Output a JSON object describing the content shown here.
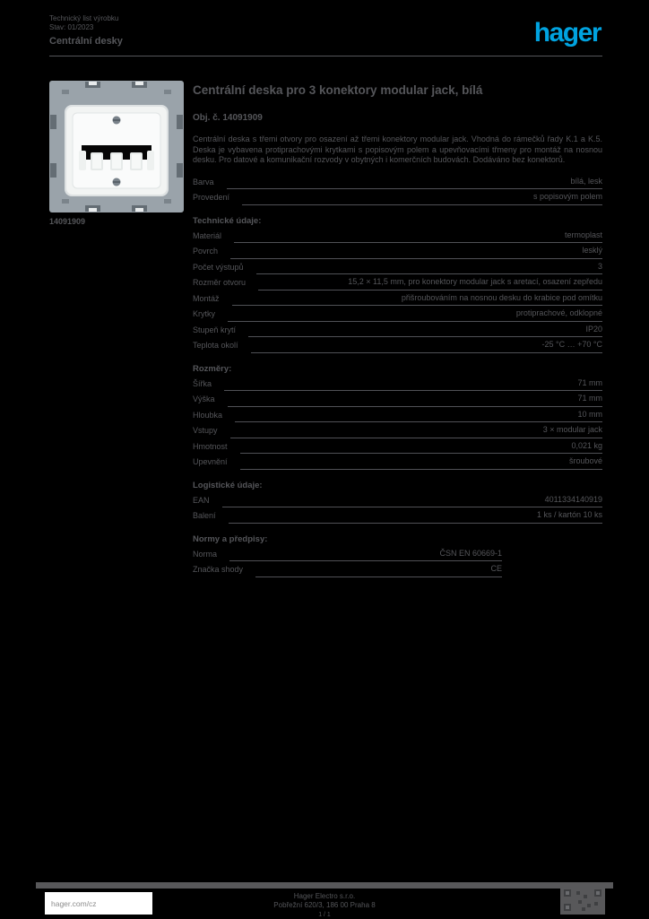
{
  "colors": {
    "background": "#000000",
    "text": "#55565a",
    "rule": "#505156",
    "logo_blue": "#00a3e0",
    "footer_box": "#ffffff",
    "footer_link_text": "#8d8d8d"
  },
  "header": {
    "line1": "Technický list výrobku",
    "line2": "Stav: 01/2023",
    "line3": "Centrální desky",
    "logo_text": "hager"
  },
  "product": {
    "image_alt": "central-plate-3-modular-jack",
    "code": "14091909"
  },
  "main": {
    "title": "Centrální deska pro 3 konektory modular jack, bílá",
    "subtitle": "Obj. č. 14091909",
    "description": "Centrální deska s třemi otvory pro osazení až třemi konektory modular jack. Vhodná do rámečků řady K.1 a K.5. Deska je vybavena protiprachovými krytkami s popisovým polem a upevňovacími třmeny pro montáž na nosnou desku. Pro datové a komunikační rozvody v obytných i komerčních budovách. Dodáváno bez konektorů.",
    "sections": [
      {
        "heading": "",
        "narrow": false,
        "rows": [
          {
            "label": "Barva",
            "value": "bílá, lesk"
          },
          {
            "label": "Provedení",
            "value": "s popisovým polem"
          }
        ]
      },
      {
        "heading": "Technické údaje:",
        "narrow": false,
        "rows": [
          {
            "label": "Materiál",
            "value": "termoplast"
          },
          {
            "label": "Povrch",
            "value": "lesklý"
          },
          {
            "label": "Počet výstupů",
            "value": "3"
          },
          {
            "label": "Rozměr otvoru",
            "value": "15,2 × 11,5 mm, pro konektory modular jack s aretací, osazení zepředu"
          },
          {
            "label": "Montáž",
            "value": "přišroubováním na nosnou desku do krabice pod omítku"
          },
          {
            "label": "Krytky",
            "value": "protiprachové, odklopné"
          },
          {
            "label": "Stupeň krytí",
            "value": "IP20"
          },
          {
            "label": "Teplota okolí",
            "value": "-25 °C … +70 °C"
          }
        ]
      },
      {
        "heading": "Rozměry:",
        "narrow": false,
        "rows": [
          {
            "label": "Šířka",
            "value": "71 mm"
          },
          {
            "label": "Výška",
            "value": "71 mm"
          },
          {
            "label": "Hloubka",
            "value": "10 mm"
          },
          {
            "label": "Vstupy",
            "value": "3 × modular jack"
          },
          {
            "label": "Hmotnost",
            "value": "0,021 kg"
          },
          {
            "label": "Upevnění",
            "value": "šroubové"
          }
        ]
      },
      {
        "heading": "Logistické údaje:",
        "narrow": false,
        "rows": [
          {
            "label": "EAN",
            "value": "4011334140919"
          },
          {
            "label": "Balení",
            "value": "1 ks / kartón 10 ks"
          }
        ]
      },
      {
        "heading": "Normy a předpisy:",
        "narrow": true,
        "rows": [
          {
            "label": "Norma",
            "value": "ČSN EN 60669-1"
          },
          {
            "label": "Značka shody",
            "value": "CE"
          }
        ]
      }
    ]
  },
  "footer": {
    "link": "hager.com/cz",
    "center_line1": "Hager Electro s.r.o.",
    "center_line2": "Pobřežní 620/3, 186 00 Praha 8",
    "page": "1 / 1",
    "qr_icon": "qr-code-icon"
  }
}
